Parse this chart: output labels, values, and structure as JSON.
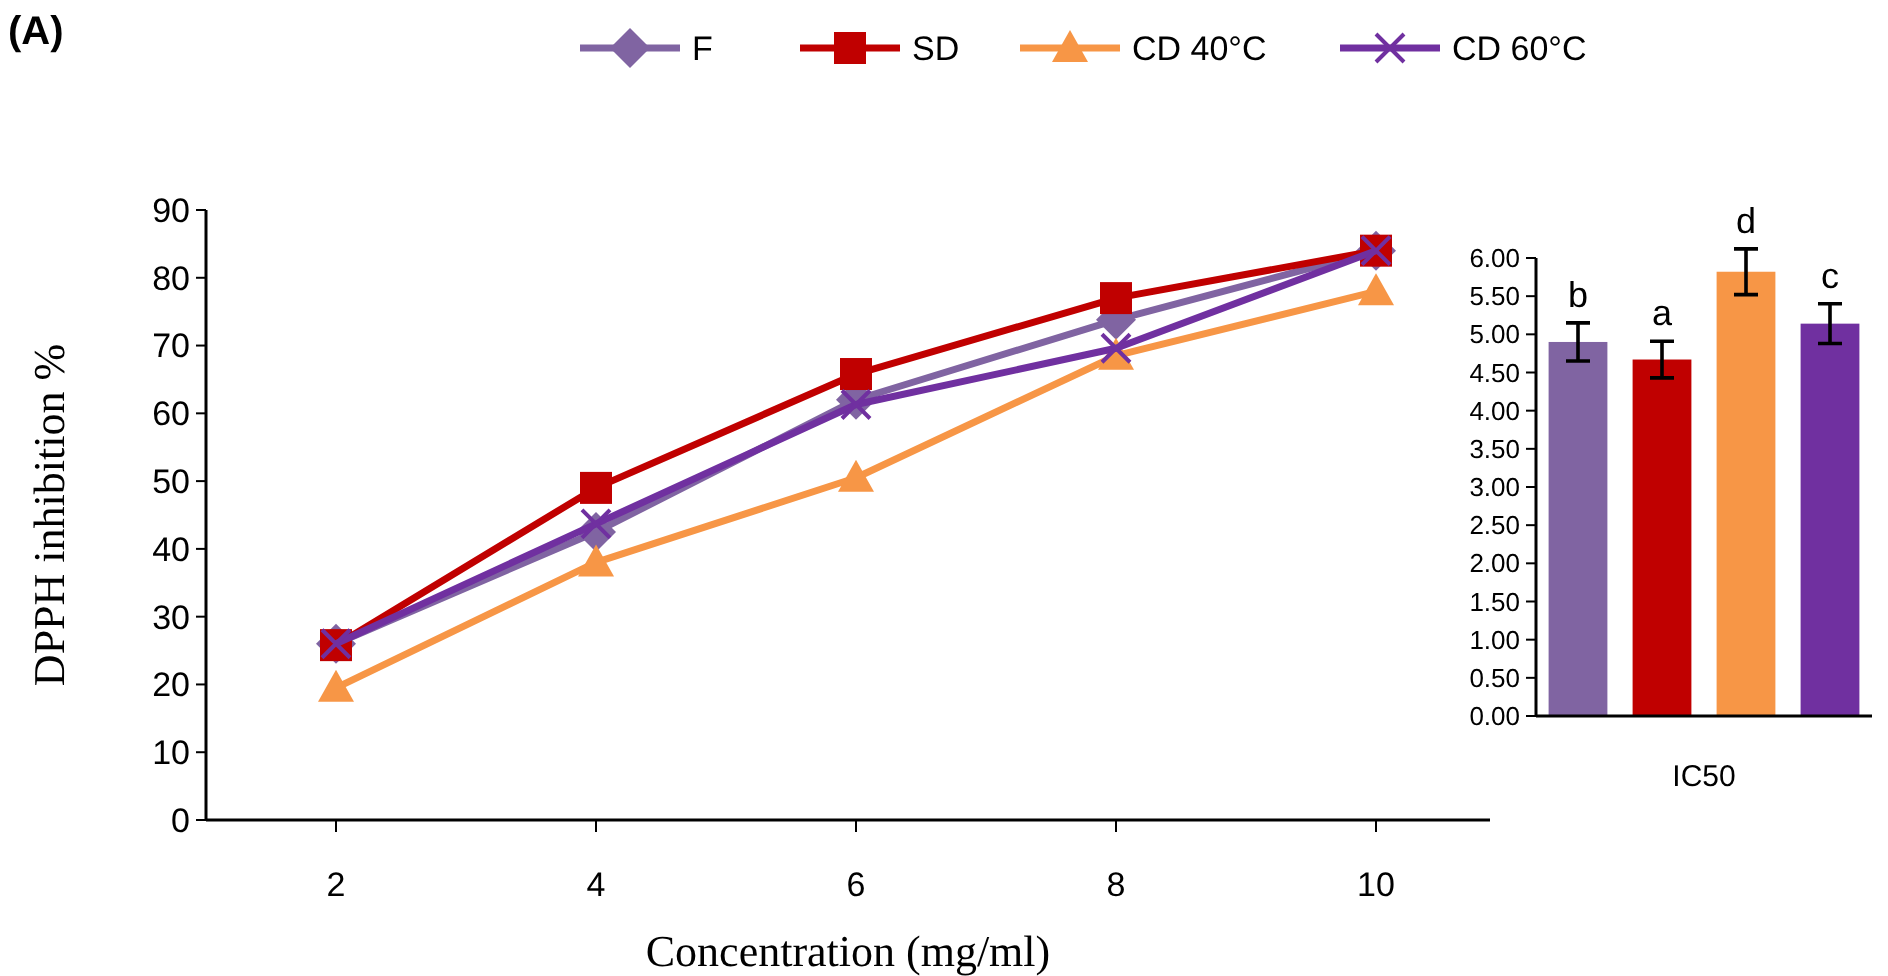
{
  "chart_data": [
    {
      "type": "line",
      "title": "(A)",
      "xlabel": "Concentration (mg/ml)",
      "ylabel": "DPPH inhibition %",
      "categories": [
        "2",
        "4",
        "6",
        "8",
        "10"
      ],
      "ylim": [
        0,
        90
      ],
      "yticks": [
        0,
        10,
        20,
        30,
        40,
        50,
        60,
        70,
        80,
        90
      ],
      "legend": "top",
      "grid": false,
      "series": [
        {
          "name": "F",
          "color": "#8064a2",
          "marker": "diamond",
          "values": [
            26,
            42.5,
            62,
            73.8,
            84
          ]
        },
        {
          "name": "SD",
          "color": "#c00000",
          "marker": "square",
          "values": [
            25.8,
            49,
            65.8,
            77,
            84
          ]
        },
        {
          "name": "CD 40°C",
          "color": "#f79646",
          "marker": "triangle",
          "values": [
            19.5,
            38,
            50.5,
            68.5,
            78
          ]
        },
        {
          "name": "CD 60°C",
          "color": "#7030a0",
          "marker": "cross",
          "values": [
            26,
            43.7,
            61.3,
            69.6,
            84
          ]
        }
      ]
    },
    {
      "type": "bar",
      "xlabel": "IC50",
      "categories": [
        null,
        null,
        null,
        null
      ],
      "values": [
        4.9,
        4.67,
        5.82,
        5.14
      ],
      "colors": [
        "#8064a2",
        "#c00000",
        "#f79646",
        "#7030a0"
      ],
      "errors": [
        0.25,
        0.24,
        0.3,
        0.26
      ],
      "ylim": [
        0,
        6
      ],
      "yticks": [
        {
          "value": 0,
          "label": "0.00"
        },
        {
          "value": 0.5,
          "label": "0.50"
        },
        {
          "value": 1,
          "label": "1.00"
        },
        {
          "value": 1.5,
          "label": "1.50"
        },
        {
          "value": 2,
          "label": "2.00"
        },
        {
          "value": 2.5,
          "label": "2.50"
        },
        {
          "value": 3,
          "label": "3.00"
        },
        {
          "value": 3.5,
          "label": "3.50"
        },
        {
          "value": 4,
          "label": "4.00"
        },
        {
          "value": 4.5,
          "label": "4.50"
        },
        {
          "value": 5,
          "label": "5.00"
        },
        {
          "value": 5.5,
          "label": "5.50"
        },
        {
          "value": 6,
          "label": "6.00"
        }
      ],
      "grid": false,
      "annotations": [
        "b",
        "a",
        "d",
        "c"
      ]
    }
  ]
}
